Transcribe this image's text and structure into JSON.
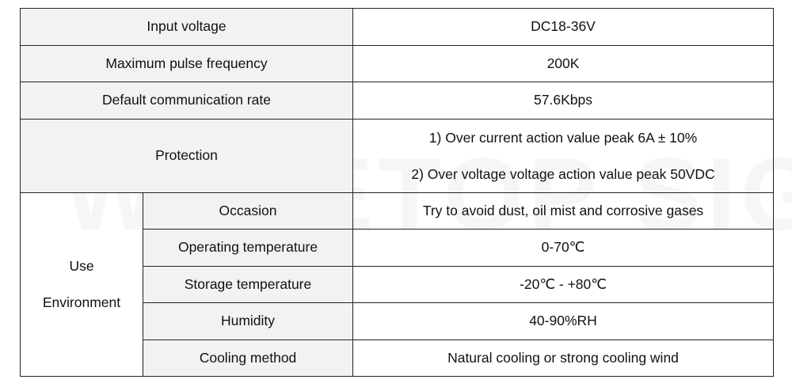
{
  "watermark": "WAVETOP SIGN",
  "table": {
    "rows": [
      {
        "label": "Input voltage",
        "value": "DC18-36V"
      },
      {
        "label": "Maximum pulse frequency",
        "value": "200K"
      },
      {
        "label": "Default communication rate",
        "value": "57.6Kbps"
      },
      {
        "label": "Protection",
        "values": [
          "1)  Over current action value peak 6A  ±  10%",
          "2)  Over voltage voltage action value peak 50VDC"
        ]
      }
    ],
    "environment": {
      "label": [
        "Use",
        "Environment"
      ],
      "rows": [
        {
          "label": "Occasion",
          "value": "Try to avoid dust, oil mist and corrosive gases"
        },
        {
          "label": "Operating temperature",
          "value": "0-70℃"
        },
        {
          "label": "Storage temperature",
          "value": "-20℃  -  +80℃"
        },
        {
          "label": "Humidity",
          "value": "40-90%RH"
        },
        {
          "label": "Cooling method",
          "value": "Natural cooling or strong cooling wind"
        }
      ]
    }
  }
}
